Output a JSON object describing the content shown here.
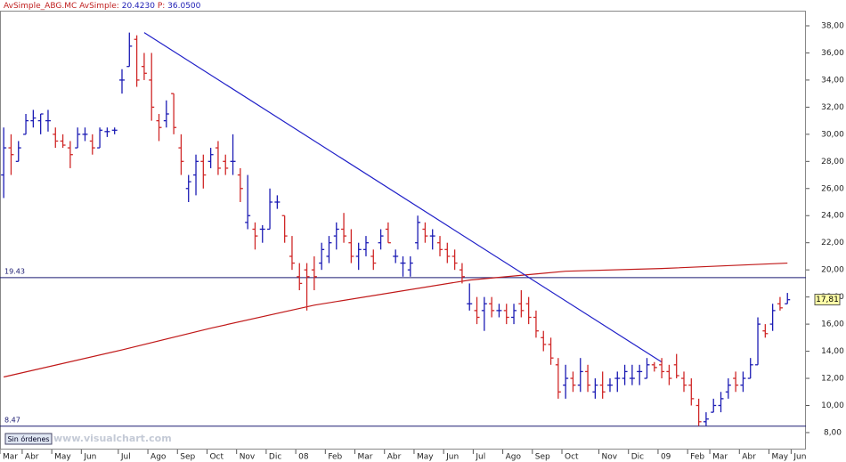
{
  "chart_data": {
    "type": "ohlc",
    "header": {
      "symbol": "AvSimple_ABG.MC",
      "indicator_label": "AvSimple:",
      "indicator_value": "20.4230",
      "price_label": "P:",
      "price_value": "36.0500"
    },
    "up_color": "#1c1cb4",
    "down_color": "#d02828",
    "ohlc": [
      [
        27,
        30.5,
        25.3,
        29
      ],
      [
        29,
        30,
        27,
        28.5
      ],
      [
        28,
        29.5,
        28,
        29
      ],
      [
        30,
        31.5,
        30,
        31
      ],
      [
        31,
        31.8,
        30.5,
        31.2
      ],
      [
        31,
        31.5,
        30,
        31.5
      ],
      [
        31,
        31.8,
        30.2,
        31
      ],
      [
        30,
        30.5,
        29,
        29.5
      ],
      [
        29.5,
        30,
        29,
        29.2
      ],
      [
        29,
        29.5,
        27.5,
        28.5
      ],
      [
        29,
        30.5,
        29,
        30
      ],
      [
        30,
        30.5,
        29.5,
        30
      ],
      [
        29.5,
        30,
        28.5,
        29
      ],
      [
        29,
        30.5,
        29,
        30.3
      ],
      [
        30.2,
        30.5,
        29.8,
        30.2
      ],
      [
        30.3,
        30.5,
        30,
        30.3
      ],
      [
        34,
        34.8,
        33,
        34
      ],
      [
        35,
        37.5,
        35,
        36.5
      ],
      [
        37,
        37.3,
        33.5,
        34
      ],
      [
        35,
        36,
        34,
        34.5
      ],
      [
        34,
        36,
        31,
        32
      ],
      [
        31,
        31.5,
        29.5,
        30.5
      ],
      [
        31,
        32.5,
        30.5,
        31.5
      ],
      [
        33,
        33,
        30,
        30.5
      ],
      [
        29,
        30,
        27,
        28
      ],
      [
        26,
        27,
        25,
        26.5
      ],
      [
        27,
        28.5,
        25.5,
        28
      ],
      [
        28,
        28.5,
        26,
        27
      ],
      [
        28,
        29,
        27.5,
        28.5
      ],
      [
        29,
        29.5,
        27,
        27.5
      ],
      [
        28,
        28.5,
        27,
        27.5
      ],
      [
        28,
        30,
        27,
        28
      ],
      [
        27,
        27.5,
        25,
        26
      ],
      [
        23.5,
        27,
        23,
        24
      ],
      [
        23,
        23.5,
        21.5,
        22.5
      ],
      [
        23,
        23.3,
        22,
        23
      ],
      [
        23,
        26,
        23,
        25
      ],
      [
        25,
        25.5,
        24.5,
        25
      ],
      [
        24,
        24,
        22,
        22.5
      ],
      [
        21,
        22.5,
        20,
        20.5
      ],
      [
        19.5,
        20.5,
        18.5,
        19
      ],
      [
        20,
        20.5,
        17,
        19.5
      ],
      [
        20,
        21,
        18.5,
        19.5
      ],
      [
        20.5,
        22,
        20,
        21.5
      ],
      [
        21,
        22.5,
        20.5,
        22
      ],
      [
        22.5,
        23.5,
        21.5,
        23
      ],
      [
        23,
        24.2,
        22,
        22.5
      ],
      [
        22,
        23,
        20.5,
        21
      ],
      [
        21,
        22,
        20,
        21.5
      ],
      [
        21.5,
        22.5,
        21,
        22
      ],
      [
        21,
        21.5,
        20,
        20.5
      ],
      [
        22,
        23,
        21.5,
        22.5
      ],
      [
        23,
        23.5,
        22,
        22
      ],
      [
        21,
        21.5,
        20.5,
        21
      ],
      [
        20.5,
        21,
        19.5,
        20.5
      ],
      [
        20,
        21,
        19.5,
        20.5
      ],
      [
        22,
        24,
        21.5,
        23.5
      ],
      [
        23,
        23.5,
        22,
        22.5
      ],
      [
        22.5,
        23,
        21.5,
        22.5
      ],
      [
        22,
        22.5,
        21,
        21.5
      ],
      [
        21.5,
        22,
        20.5,
        21
      ],
      [
        21,
        21.5,
        20,
        20.5
      ],
      [
        20,
        20.5,
        19,
        19.5
      ],
      [
        17.5,
        19,
        17,
        17.5
      ],
      [
        17,
        18,
        16,
        16.5
      ],
      [
        17,
        18,
        15.5,
        17.5
      ],
      [
        17.5,
        18,
        16.5,
        17
      ],
      [
        17,
        17.5,
        16.5,
        17
      ],
      [
        17,
        17.5,
        16,
        16.5
      ],
      [
        16.5,
        17.5,
        16,
        17
      ],
      [
        17.5,
        18.5,
        16.5,
        17
      ],
      [
        17.5,
        18,
        16,
        16.5
      ],
      [
        16.5,
        17,
        15,
        15.5
      ],
      [
        15,
        15.5,
        14,
        14.5
      ],
      [
        14.5,
        15,
        13,
        13.5
      ],
      [
        13,
        13.5,
        10.5,
        11
      ],
      [
        11.5,
        13,
        10.5,
        12
      ],
      [
        12,
        12.5,
        11,
        11.5
      ],
      [
        11.5,
        13.5,
        11,
        12.5
      ],
      [
        12.5,
        13,
        11,
        11.5
      ],
      [
        11,
        12,
        10.5,
        11.5
      ],
      [
        11.5,
        12.5,
        10.5,
        11
      ],
      [
        11.5,
        12,
        11,
        11.5
      ],
      [
        12,
        12.5,
        11,
        12
      ],
      [
        12,
        13,
        11.5,
        12.5
      ],
      [
        12,
        13,
        11.5,
        12
      ],
      [
        12.5,
        13,
        11.5,
        12.5
      ],
      [
        12,
        13.5,
        12,
        13
      ],
      [
        13,
        13.2,
        12.5,
        12.8
      ],
      [
        13,
        13.5,
        12,
        12.5
      ],
      [
        12.5,
        13,
        11.5,
        12
      ],
      [
        13,
        13.8,
        12,
        12.2
      ],
      [
        12,
        12.5,
        11,
        11.5
      ],
      [
        11.5,
        12,
        10,
        10.5
      ],
      [
        10,
        10.5,
        8.5,
        8.8
      ],
      [
        8.8,
        9.5,
        8.5,
        9
      ],
      [
        9.5,
        10.5,
        9.5,
        10
      ],
      [
        10,
        11,
        9.5,
        10.5
      ],
      [
        11,
        12,
        10.5,
        11.5
      ],
      [
        12,
        12.5,
        11,
        11.5
      ],
      [
        11.5,
        12.5,
        11,
        12
      ],
      [
        12,
        13.5,
        12,
        13
      ],
      [
        13,
        16.5,
        13,
        16
      ],
      [
        15.5,
        16,
        15,
        15.3
      ],
      [
        16,
        17.5,
        15.5,
        17
      ],
      [
        17.5,
        18,
        17,
        17.2
      ],
      [
        17.5,
        18.3,
        17.5,
        17.8
      ]
    ],
    "moving_average": {
      "color": "#c01818",
      "x": [
        0,
        16,
        28,
        42,
        63,
        72,
        76,
        89,
        106
      ],
      "values": [
        12.1,
        14.1,
        15.7,
        17.4,
        19.25,
        19.7,
        19.9,
        20.1,
        20.5
      ]
    },
    "trendline": {
      "color": "#2020c8",
      "x": [
        19,
        89
      ],
      "values": [
        37.5,
        13.2
      ]
    },
    "hlines": [
      19.43,
      8.47
    ],
    "last_price": {
      "value": 17.81,
      "label": "17,81"
    },
    "xlim": [
      -0.5,
      108.5
    ],
    "ylim": [
      6.75,
      39.05
    ],
    "xticks": [
      {
        "value": 0,
        "label": "Mar"
      },
      {
        "value": 3,
        "label": "Abr"
      },
      {
        "value": 7,
        "label": "May"
      },
      {
        "value": 11,
        "label": "Jun"
      },
      {
        "value": 16,
        "label": "Jul"
      },
      {
        "value": 20,
        "label": "Ago"
      },
      {
        "value": 24,
        "label": "Sep"
      },
      {
        "value": 28,
        "label": "Oct"
      },
      {
        "value": 32,
        "label": "Nov"
      },
      {
        "value": 36,
        "label": "Dic"
      },
      {
        "value": 40,
        "label": "08"
      },
      {
        "value": 44,
        "label": "Feb"
      },
      {
        "value": 48,
        "label": "Mar"
      },
      {
        "value": 52,
        "label": "Abr"
      },
      {
        "value": 56,
        "label": "May"
      },
      {
        "value": 60,
        "label": "Jun"
      },
      {
        "value": 64,
        "label": "Jul"
      },
      {
        "value": 68,
        "label": "Ago"
      },
      {
        "value": 72,
        "label": "Sep"
      },
      {
        "value": 76,
        "label": "Oct"
      },
      {
        "value": 81,
        "label": "Nov"
      },
      {
        "value": 85,
        "label": "Dic"
      },
      {
        "value": 89,
        "label": "09"
      },
      {
        "value": 93,
        "label": "Feb"
      },
      {
        "value": 96,
        "label": "Mar"
      },
      {
        "value": 100,
        "label": "Abr"
      },
      {
        "value": 104,
        "label": "May"
      },
      {
        "value": 107,
        "label": "Jun"
      }
    ],
    "yticks": [
      {
        "value": 8,
        "label": "8,00"
      },
      {
        "value": 10,
        "label": "10,00"
      },
      {
        "value": 12,
        "label": "12,00"
      },
      {
        "value": 14,
        "label": "14,00"
      },
      {
        "value": 16,
        "label": "16,00"
      },
      {
        "value": 18,
        "label": "18,00"
      },
      {
        "value": 20,
        "label": "20,00"
      },
      {
        "value": 22,
        "label": "22,00"
      },
      {
        "value": 24,
        "label": "24,00"
      },
      {
        "value": 26,
        "label": "26,00"
      },
      {
        "value": 28,
        "label": "28,00"
      },
      {
        "value": 30,
        "label": "30,00"
      },
      {
        "value": 32,
        "label": "32,00"
      },
      {
        "value": 34,
        "label": "34,00"
      },
      {
        "value": 36,
        "label": "36,00"
      },
      {
        "value": 38,
        "label": "38,00"
      }
    ],
    "button": "Sin órdenes",
    "watermark": "www.visualchart.com"
  }
}
